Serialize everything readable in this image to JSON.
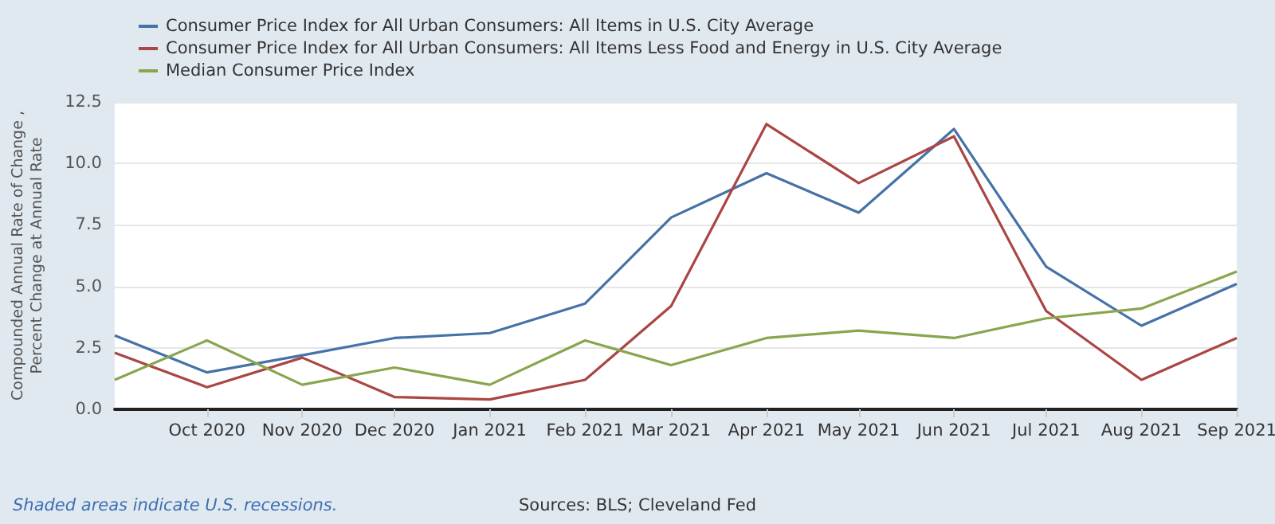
{
  "chart_data": {
    "type": "line",
    "ylabel": "Compounded Annual Rate of Change , Percent Change at Annual Rate",
    "x": [
      "2020-09-01",
      "2020-10-01",
      "2020-11-01",
      "2020-12-01",
      "2021-01-01",
      "2021-02-01",
      "2021-03-01",
      "2021-04-01",
      "2021-05-01",
      "2021-06-01",
      "2021-07-01",
      "2021-08-01",
      "2021-09-01"
    ],
    "series": [
      {
        "name": "Consumer Price Index for All Urban Consumers: All Items in U.S. City Average",
        "color": "#4572a7",
        "values": [
          3.0,
          1.5,
          2.2,
          2.9,
          3.1,
          4.3,
          7.8,
          9.6,
          8.0,
          11.4,
          5.8,
          3.4,
          5.1
        ]
      },
      {
        "name": "Consumer Price Index for All Urban Consumers: All Items Less Food and Energy in U.S. City Average",
        "color": "#aa4643",
        "values": [
          2.3,
          0.9,
          2.1,
          0.5,
          0.4,
          1.2,
          4.2,
          11.6,
          9.2,
          11.1,
          4.0,
          1.2,
          2.9
        ]
      },
      {
        "name": "Median Consumer Price Index",
        "color": "#89a54e",
        "values": [
          1.2,
          2.8,
          1.0,
          1.7,
          1.0,
          2.8,
          1.8,
          2.9,
          3.2,
          2.9,
          3.7,
          4.1,
          5.6
        ]
      }
    ],
    "xlim": [
      "2020-09-01",
      "2021-09-01"
    ],
    "xticks": [
      {
        "value": "2020-10-01",
        "label": "Oct 2020"
      },
      {
        "value": "2020-11-01",
        "label": "Nov 2020"
      },
      {
        "value": "2020-12-01",
        "label": "Dec 2020"
      },
      {
        "value": "2021-01-01",
        "label": "Jan 2021"
      },
      {
        "value": "2021-02-01",
        "label": "Feb 2021"
      },
      {
        "value": "2021-03-01",
        "label": "Mar 2021"
      },
      {
        "value": "2021-04-01",
        "label": "Apr 2021"
      },
      {
        "value": "2021-05-01",
        "label": "May 2021"
      },
      {
        "value": "2021-06-01",
        "label": "Jun 2021"
      },
      {
        "value": "2021-07-01",
        "label": "Jul 2021"
      },
      {
        "value": "2021-08-01",
        "label": "Aug 2021"
      },
      {
        "value": "2021-09-01",
        "label": "Sep 2021"
      }
    ],
    "ylim": [
      0,
      12.5
    ],
    "yticks": [
      {
        "value": 0,
        "label": "0.0"
      },
      {
        "value": 2.5,
        "label": "2.5"
      },
      {
        "value": 5,
        "label": "5.0"
      },
      {
        "value": 7.5,
        "label": "7.5"
      },
      {
        "value": 10,
        "label": "10.0"
      },
      {
        "value": 12.5,
        "label": "12.5"
      }
    ],
    "grid": "y",
    "legend": "top left",
    "marker": "none",
    "line_style": "solid",
    "annotations": [
      "Shaded areas indicate U.S. recessions.",
      "Sources: BLS; Cleveland Fed"
    ]
  }
}
